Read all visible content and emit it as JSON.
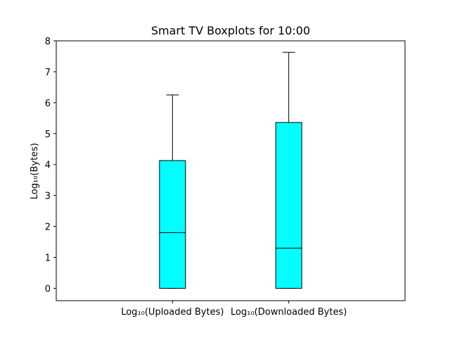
{
  "chart_data": {
    "type": "boxplot",
    "title": "Smart TV Boxplots for 10:00",
    "xlabel": "",
    "ylabel": "Log₁₀(Bytes)",
    "ylim": [
      -0.4,
      8.0
    ],
    "yticks": [
      "0",
      "1",
      "2",
      "3",
      "4",
      "5",
      "6",
      "7",
      "8"
    ],
    "categories": [
      "Log₁₀(Uploaded Bytes)",
      "Log₁₀(Downloaded Bytes)"
    ],
    "boxes": [
      {
        "category": "Log₁₀(Uploaded Bytes)",
        "whisker_low": 0.0,
        "q1": 0.0,
        "median": 1.8,
        "q3": 4.13,
        "whisker_high": 6.25
      },
      {
        "category": "Log₁₀(Downloaded Bytes)",
        "whisker_low": 0.0,
        "q1": 0.0,
        "median": 1.3,
        "q3": 5.36,
        "whisker_high": 7.63
      }
    ],
    "box_color": "#00ffff",
    "edge_color": "#000000",
    "grid": false,
    "legend": "none"
  }
}
